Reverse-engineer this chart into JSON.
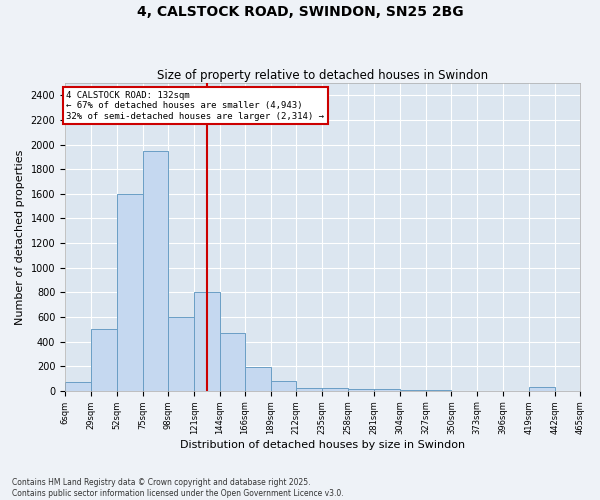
{
  "title": "4, CALSTOCK ROAD, SWINDON, SN25 2BG",
  "subtitle": "Size of property relative to detached houses in Swindon",
  "xlabel": "Distribution of detached houses by size in Swindon",
  "ylabel": "Number of detached properties",
  "footnote": "Contains HM Land Registry data © Crown copyright and database right 2025.\nContains public sector information licensed under the Open Government Licence v3.0.",
  "annotation_line1": "4 CALSTOCK ROAD: 132sqm",
  "annotation_line2": "← 67% of detached houses are smaller (4,943)",
  "annotation_line3": "32% of semi-detached houses are larger (2,314) →",
  "bar_color": "#c5d8f0",
  "bar_edge_color": "#6a9ec5",
  "vline_color": "#cc0000",
  "vline_x": 132,
  "background_color": "#dce6f0",
  "fig_color": "#eef2f7",
  "ylim": [
    0,
    2500
  ],
  "yticks": [
    0,
    200,
    400,
    600,
    800,
    1000,
    1200,
    1400,
    1600,
    1800,
    2000,
    2200,
    2400
  ],
  "bins": [
    6,
    29,
    52,
    75,
    98,
    121,
    144,
    166,
    189,
    212,
    235,
    258,
    281,
    304,
    327,
    350,
    373,
    396,
    419,
    442,
    465
  ],
  "values": [
    70,
    500,
    1600,
    1950,
    600,
    800,
    470,
    195,
    75,
    25,
    20,
    10,
    10,
    5,
    5,
    0,
    0,
    0,
    30,
    0
  ]
}
